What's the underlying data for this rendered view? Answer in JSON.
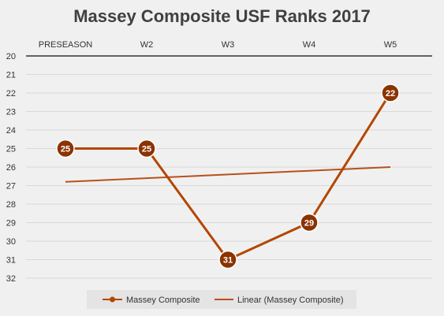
{
  "chart_data": {
    "type": "line",
    "title": "Massey Composite USF Ranks 2017",
    "categories": [
      "PRESEASON",
      "W2",
      "W3",
      "W4",
      "W5"
    ],
    "series": [
      {
        "name": "Massey Composite",
        "values": [
          25,
          25,
          31,
          29,
          22
        ],
        "color": "#b34700"
      },
      {
        "name": "Linear (Massey Composite)",
        "values": [
          26.8,
          26.6,
          26.4,
          26.2,
          26.0
        ],
        "color": "#b8501a",
        "trendline": true
      }
    ],
    "y_axis": {
      "min": 20,
      "max": 32,
      "step": 1,
      "reversed": true
    },
    "x_axis_position": "top",
    "grid": true,
    "legend": "bottom",
    "data_labels": true
  }
}
